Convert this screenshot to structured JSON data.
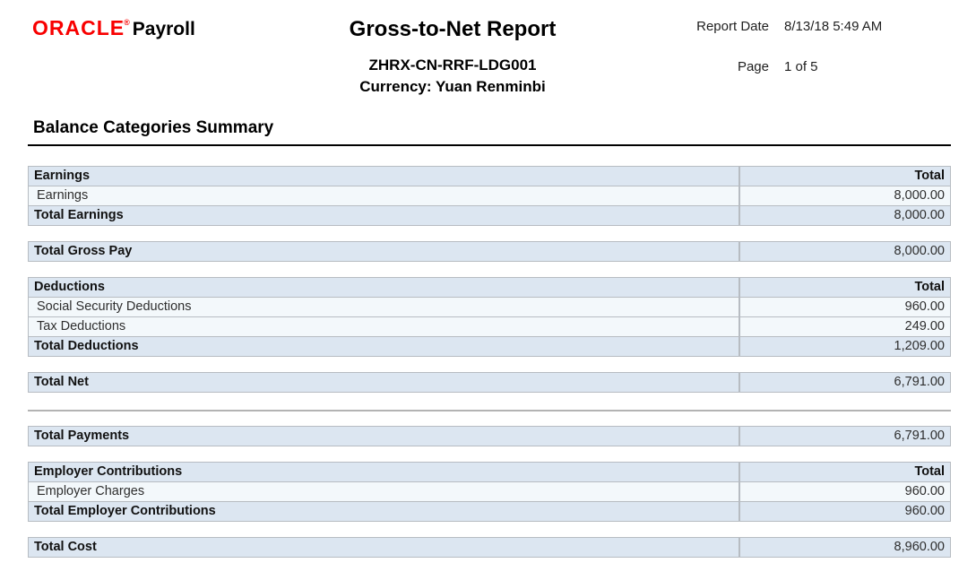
{
  "header": {
    "brand": "ORACLE",
    "registered_mark": "®",
    "product": "Payroll",
    "title": "Gross-to-Net Report",
    "report_code": "ZHRX-CN-RRF-LDG001",
    "currency_line": "Currency: Yuan Renminbi",
    "report_date_label": "Report Date",
    "report_date_value": "8/13/18 5:49 AM",
    "page_label": "Page",
    "page_value": "1 of 5"
  },
  "section": {
    "heading": "Balance Categories Summary"
  },
  "colors": {
    "oracle_red": "#f80000",
    "header_row_bg": "#dce6f1",
    "data_row_bg": "#f3f8fb",
    "table_border": "#b7bcc2",
    "rule_black": "#000000",
    "divider_gray": "#b3b3b3"
  },
  "tables": [
    {
      "type": "group",
      "name": "earnings-table",
      "rows": [
        {
          "kind": "header",
          "label": "Earnings",
          "value": "Total"
        },
        {
          "kind": "data",
          "label": "Earnings",
          "value": "8,000.00"
        },
        {
          "kind": "total",
          "label": "Total Earnings",
          "value": "8,000.00"
        }
      ]
    },
    {
      "type": "single",
      "name": "total-gross-pay-table",
      "rows": [
        {
          "kind": "total",
          "label": "Total Gross Pay",
          "value": "8,000.00"
        }
      ]
    },
    {
      "type": "group",
      "name": "deductions-table",
      "rows": [
        {
          "kind": "header",
          "label": "Deductions",
          "value": "Total"
        },
        {
          "kind": "data",
          "label": "Social Security Deductions",
          "value": "960.00"
        },
        {
          "kind": "data",
          "label": "Tax Deductions",
          "value": "249.00"
        },
        {
          "kind": "total",
          "label": "Total Deductions",
          "value": "1,209.00"
        }
      ]
    },
    {
      "type": "single",
      "name": "total-net-table",
      "rows": [
        {
          "kind": "total",
          "label": "Total Net",
          "value": "6,791.00"
        }
      ]
    },
    {
      "type": "divider"
    },
    {
      "type": "single",
      "name": "total-payments-table",
      "rows": [
        {
          "kind": "total",
          "label": "Total Payments",
          "value": "6,791.00"
        }
      ]
    },
    {
      "type": "group",
      "name": "employer-contributions-table",
      "rows": [
        {
          "kind": "header",
          "label": "Employer Contributions",
          "value": "Total"
        },
        {
          "kind": "data",
          "label": "Employer Charges",
          "value": "960.00"
        },
        {
          "kind": "total",
          "label": "Total Employer Contributions",
          "value": "960.00"
        }
      ]
    },
    {
      "type": "single",
      "name": "total-cost-table",
      "rows": [
        {
          "kind": "total",
          "label": "Total Cost",
          "value": "8,960.00"
        }
      ]
    }
  ]
}
